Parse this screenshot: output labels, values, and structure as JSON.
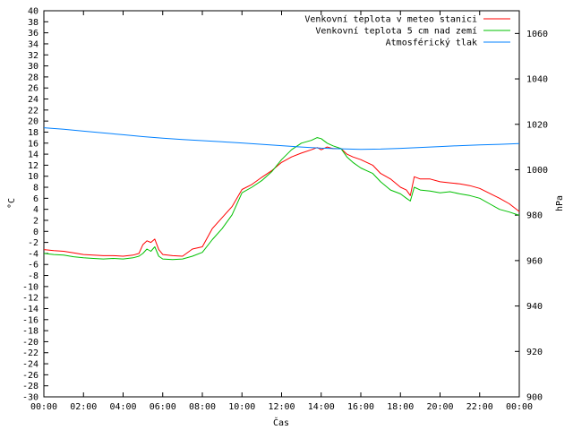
{
  "chart_data": {
    "type": "line",
    "xlabel": "Čas",
    "ylabel_left": "°C",
    "ylabel_right": "hPa",
    "ylim_left": [
      -30,
      40
    ],
    "ylim_right": [
      900,
      1070
    ],
    "xlim_hours": [
      0,
      24
    ],
    "x_ticks": [
      "00:00",
      "02:00",
      "04:00",
      "06:00",
      "08:00",
      "10:00",
      "12:00",
      "14:00",
      "16:00",
      "18:00",
      "20:00",
      "22:00",
      "00:00"
    ],
    "y_ticks_left": [
      "-30",
      "-28",
      "-26",
      "-24",
      "-22",
      "-20",
      "-18",
      "-16",
      "-14",
      "-12",
      "-10",
      "-8",
      "-6",
      "-4",
      "-2",
      "0",
      "2",
      "4",
      "6",
      "8",
      "10",
      "12",
      "14",
      "16",
      "18",
      "20",
      "22",
      "24",
      "26",
      "28",
      "30",
      "32",
      "34",
      "36",
      "38",
      "40"
    ],
    "y_ticks_right": [
      "900",
      "920",
      "940",
      "960",
      "980",
      "1000",
      "1020",
      "1040",
      "1060"
    ],
    "grid": false,
    "legend_position": "top-right",
    "series": [
      {
        "name": "Venkovní teplota v meteo stanici",
        "axis": "left",
        "color": "#ff0000",
        "x": [
          0,
          0.5,
          1,
          1.5,
          2,
          2.5,
          3,
          3.5,
          4,
          4.5,
          4.8,
          5,
          5.2,
          5.4,
          5.6,
          5.8,
          6,
          6.5,
          7,
          7.5,
          8,
          8.5,
          9,
          9.5,
          10,
          10.5,
          11,
          11.5,
          12,
          12.5,
          13,
          13.5,
          13.8,
          14,
          14.3,
          14.6,
          15,
          15.3,
          15.6,
          16,
          16.3,
          16.6,
          17,
          17.5,
          18,
          18.3,
          18.5,
          18.7,
          19,
          19.5,
          20,
          20.5,
          21,
          21.5,
          22,
          22.5,
          23,
          23.5,
          24
        ],
        "y": [
          -3.3,
          -3.5,
          -3.6,
          -3.9,
          -4.2,
          -4.3,
          -4.4,
          -4.4,
          -4.5,
          -4.3,
          -4.0,
          -2.4,
          -1.7,
          -2.0,
          -1.4,
          -3.3,
          -4.2,
          -4.4,
          -4.5,
          -3.2,
          -2.8,
          0.5,
          2.5,
          4.5,
          7.6,
          8.5,
          9.8,
          11.0,
          12.5,
          13.5,
          14.2,
          14.8,
          15.2,
          14.8,
          15.3,
          15.0,
          15.0,
          14.0,
          13.5,
          13.0,
          12.5,
          12.0,
          10.5,
          9.5,
          8.0,
          7.5,
          6.5,
          9.9,
          9.5,
          9.5,
          9.0,
          8.8,
          8.6,
          8.3,
          7.8,
          6.9,
          6.0,
          5.0,
          3.6
        ]
      },
      {
        "name": "Venkovní teplota 5 cm nad zemí",
        "axis": "left",
        "color": "#00c000",
        "x": [
          0,
          0.5,
          1,
          1.5,
          2,
          2.5,
          3,
          3.5,
          4,
          4.5,
          4.8,
          5,
          5.2,
          5.4,
          5.6,
          5.8,
          6,
          6.5,
          7,
          7.5,
          8,
          8.5,
          9,
          9.5,
          10,
          10.5,
          11,
          11.5,
          12,
          12.5,
          13,
          13.5,
          13.8,
          14,
          14.3,
          14.6,
          15,
          15.3,
          15.6,
          16,
          16.3,
          16.6,
          17,
          17.5,
          18,
          18.3,
          18.5,
          18.7,
          19,
          19.5,
          20,
          20.5,
          21,
          21.5,
          22,
          22.5,
          23,
          23.5,
          24
        ],
        "y": [
          -4.0,
          -4.2,
          -4.3,
          -4.6,
          -4.8,
          -4.9,
          -5.0,
          -4.9,
          -5.0,
          -4.8,
          -4.5,
          -4.0,
          -3.2,
          -3.6,
          -2.8,
          -4.5,
          -5.0,
          -5.1,
          -5.0,
          -4.5,
          -3.8,
          -1.5,
          0.5,
          3.0,
          7.0,
          8.0,
          9.2,
          10.8,
          13.0,
          14.8,
          16.0,
          16.5,
          17.0,
          16.8,
          16.0,
          15.5,
          15.0,
          13.5,
          12.5,
          11.5,
          11.0,
          10.5,
          9.0,
          7.5,
          6.8,
          6.0,
          5.5,
          8.0,
          7.5,
          7.3,
          7.0,
          7.2,
          6.8,
          6.5,
          6.0,
          5.0,
          4.0,
          3.5,
          2.9
        ]
      },
      {
        "name": "Atmosférický tlak",
        "axis": "right",
        "color": "#0080ff",
        "x": [
          0,
          1,
          2,
          3,
          4,
          5,
          6,
          7,
          8,
          9,
          10,
          11,
          12,
          13,
          14,
          15,
          16,
          17,
          18,
          19,
          20,
          21,
          22,
          23,
          24
        ],
        "y": [
          1018.5,
          1017.8,
          1017.0,
          1016.2,
          1015.4,
          1014.6,
          1013.9,
          1013.3,
          1012.8,
          1012.3,
          1011.8,
          1011.2,
          1010.6,
          1010.0,
          1009.5,
          1009.2,
          1009.0,
          1009.1,
          1009.4,
          1009.8,
          1010.2,
          1010.6,
          1010.9,
          1011.2,
          1011.5
        ]
      }
    ]
  }
}
